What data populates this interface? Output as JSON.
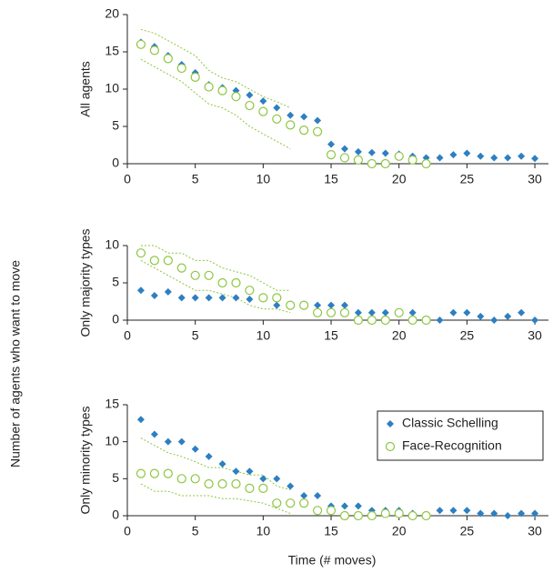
{
  "shared_ylabel": "Number of agents who want to move",
  "chart_data": [
    {
      "type": "scatter",
      "ylabel": "All agents",
      "x": [
        1,
        2,
        3,
        4,
        5,
        6,
        7,
        8,
        9,
        10,
        11,
        12,
        13,
        14,
        15,
        16,
        17,
        18,
        19,
        20,
        21,
        22,
        23,
        24,
        25,
        26,
        27,
        28,
        29,
        30
      ],
      "xlim": [
        0,
        31
      ],
      "xticks": [
        0,
        5,
        10,
        15,
        20,
        25,
        30
      ],
      "ylim": [
        0,
        20
      ],
      "yticks": [
        0,
        5,
        10,
        15,
        20
      ],
      "series": [
        {
          "name": "Classic Schelling",
          "color": "#2e7fc1",
          "marker": "diamond",
          "values": [
            16.3,
            15.7,
            14.5,
            13.3,
            12.2,
            10.6,
            10.2,
            9.8,
            9.2,
            8.4,
            7.5,
            6.5,
            6.3,
            5.8,
            2.6,
            2.0,
            1.6,
            1.5,
            1.4,
            1.3,
            1.0,
            0.8,
            0.8,
            1.2,
            1.4,
            1.0,
            0.8,
            0.8,
            1.0,
            0.7
          ]
        },
        {
          "name": "Face-Recognition",
          "color": "#8dc63f",
          "marker": "circle",
          "values": [
            16,
            15.2,
            14.1,
            12.8,
            11.6,
            10.3,
            9.8,
            9.0,
            7.8,
            7.0,
            6.0,
            5.2,
            4.5,
            4.3,
            1.2,
            0.8,
            0.5,
            0,
            0,
            1.0,
            0.5,
            0,
            null,
            null,
            null,
            null,
            null,
            null,
            null,
            null
          ]
        }
      ],
      "band": {
        "color": "#8dc63f",
        "upper": [
          18,
          17.5,
          16.5,
          15.5,
          14.5,
          12.5,
          11.5,
          11,
          10,
          9,
          8.3,
          7.5,
          null,
          null,
          null,
          null,
          null,
          null,
          null,
          null,
          null,
          null,
          null,
          null,
          null,
          null,
          null,
          null,
          null,
          null
        ],
        "lower": [
          14,
          13,
          12,
          11,
          9.5,
          8,
          7.5,
          6.5,
          5,
          4,
          3,
          2,
          null,
          null,
          null,
          null,
          null,
          null,
          null,
          null,
          null,
          null,
          null,
          null,
          null,
          null,
          null,
          null,
          null,
          null
        ]
      }
    },
    {
      "type": "scatter",
      "ylabel": "Only majority types",
      "x": [
        1,
        2,
        3,
        4,
        5,
        6,
        7,
        8,
        9,
        10,
        11,
        12,
        13,
        14,
        15,
        16,
        17,
        18,
        19,
        20,
        21,
        22,
        23,
        24,
        25,
        26,
        27,
        28,
        29,
        30
      ],
      "xlim": [
        0,
        31
      ],
      "xticks": [
        0,
        5,
        10,
        15,
        20,
        25,
        30
      ],
      "ylim": [
        0,
        10
      ],
      "yticks": [
        0,
        5,
        10
      ],
      "series": [
        {
          "name": "Classic Schelling",
          "color": "#2e7fc1",
          "marker": "diamond",
          "values": [
            4,
            3.3,
            3.8,
            3,
            3,
            3,
            3,
            3,
            2.8,
            3,
            2,
            2,
            2,
            2,
            2,
            2,
            1,
            1,
            1,
            1,
            1,
            0,
            0,
            1,
            1,
            0.5,
            0,
            0.5,
            1,
            0
          ]
        },
        {
          "name": "Face-Recognition",
          "color": "#8dc63f",
          "marker": "circle",
          "values": [
            9,
            8,
            8,
            7,
            6,
            6,
            5,
            5,
            4,
            3,
            3,
            2,
            2,
            1,
            1,
            1,
            0,
            0,
            0,
            1,
            0,
            0,
            null,
            null,
            null,
            null,
            null,
            null,
            null,
            null
          ]
        }
      ],
      "band": {
        "color": "#8dc63f",
        "upper": [
          10,
          10,
          9,
          9,
          8,
          8,
          7,
          6.5,
          6,
          5,
          4,
          4,
          null,
          null,
          null,
          null,
          null,
          null,
          null,
          null,
          null,
          null,
          null,
          null,
          null,
          null,
          null,
          null,
          null,
          null
        ],
        "lower": [
          8,
          7,
          6,
          5,
          4,
          4,
          3.5,
          3,
          2,
          1.5,
          1.5,
          1,
          null,
          null,
          null,
          null,
          null,
          null,
          null,
          null,
          null,
          null,
          null,
          null,
          null,
          null,
          null,
          null,
          null,
          null
        ]
      }
    },
    {
      "type": "scatter",
      "ylabel": "Only minority types",
      "xlabel": "Time (# moves)",
      "legend": "upper right",
      "x": [
        1,
        2,
        3,
        4,
        5,
        6,
        7,
        8,
        9,
        10,
        11,
        12,
        13,
        14,
        15,
        16,
        17,
        18,
        19,
        20,
        21,
        22,
        23,
        24,
        25,
        26,
        27,
        28,
        29,
        30
      ],
      "xlim": [
        0,
        31
      ],
      "xticks": [
        0,
        5,
        10,
        15,
        20,
        25,
        30
      ],
      "ylim": [
        0,
        15
      ],
      "yticks": [
        0,
        5,
        10,
        15
      ],
      "series": [
        {
          "name": "Classic Schelling",
          "color": "#2e7fc1",
          "marker": "diamond",
          "values": [
            13,
            11,
            10,
            10,
            9,
            8,
            7,
            6,
            6,
            5,
            5,
            4,
            2.7,
            2.7,
            1.3,
            1.3,
            1.3,
            0.7,
            0.7,
            0.7,
            0.3,
            0,
            0.7,
            0.7,
            0.7,
            0.3,
            0.3,
            0,
            0.3,
            0.3
          ]
        },
        {
          "name": "Face-Recognition",
          "color": "#8dc63f",
          "marker": "circle",
          "values": [
            5.7,
            5.7,
            5.7,
            5,
            5,
            4.3,
            4.3,
            4.3,
            3.7,
            3.7,
            1.7,
            1.7,
            1.7,
            0.7,
            0.7,
            0,
            0,
            0,
            0.3,
            0.3,
            0,
            0,
            null,
            null,
            null,
            null,
            null,
            null,
            null,
            null
          ]
        }
      ],
      "band": {
        "color": "#8dc63f",
        "upper": [
          10.5,
          9.5,
          8.5,
          8,
          7.3,
          6.5,
          6.5,
          6,
          5.5,
          5.5,
          4,
          3.5,
          null,
          null,
          null,
          null,
          null,
          null,
          null,
          null,
          null,
          null,
          null,
          null,
          null,
          null,
          null,
          null,
          null,
          null
        ],
        "lower": [
          4.3,
          3.3,
          3.3,
          2.7,
          2.7,
          2.7,
          2.3,
          2.3,
          2,
          1.7,
          1,
          0.3,
          null,
          null,
          null,
          null,
          null,
          null,
          null,
          null,
          null,
          null,
          null,
          null,
          null,
          null,
          null,
          null,
          null,
          null
        ]
      }
    }
  ]
}
